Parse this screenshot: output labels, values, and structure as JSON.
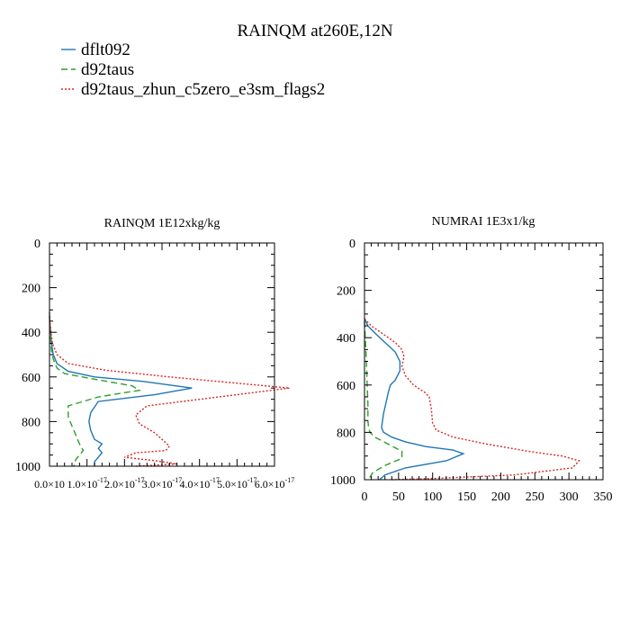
{
  "title": "RAINQM at260E,12N",
  "legend": [
    {
      "name": "dflt092",
      "color": "#1f77b4",
      "dash": "solid"
    },
    {
      "name": "d92taus",
      "color": "#2ca02c",
      "dash": "dashed"
    },
    {
      "name": "d92taus_zhun_c5zero_e3sm_flags2",
      "color": "#d62728",
      "dash": "dotted"
    }
  ],
  "chart_data": [
    {
      "type": "line",
      "title": "RAINQM  1E12xkg/kg",
      "xlabel": "",
      "ylabel": "",
      "xlim": [
        0,
        6e-17
      ],
      "ylim": [
        1000,
        0
      ],
      "y_inverted": true,
      "grid": false,
      "x_tick_values": [
        0,
        1e-17,
        2e-17,
        3e-17,
        4e-17,
        5e-17,
        6e-17
      ],
      "x_tick_labels": [
        "0.0×10",
        "1.0×10",
        "2.0×10",
        "3.0×10",
        "4.0×10",
        "5.0×10",
        "6.0×10"
      ],
      "x_tick_exponents": [
        "",
        "-17",
        "-17",
        "-17",
        "-17",
        "-17",
        "-17"
      ],
      "y_tick_values": [
        0,
        200,
        400,
        600,
        800,
        1000
      ],
      "y_tick_labels": [
        "0",
        "200",
        "400",
        "600",
        "800",
        "1000"
      ],
      "series": [
        {
          "name": "dflt092",
          "x": [
            0,
            1e-19,
            3e-19,
            5e-19,
            1e-18,
            2e-18,
            5e-18,
            1.2e-17,
            2.5e-17,
            3.8e-17,
            2.8e-17,
            1.3e-17,
            1.1e-17,
            1.05e-17,
            1.1e-17,
            1.2e-17,
            1.4e-17,
            1.3e-17,
            1.4e-17,
            1.3e-17,
            1.2e-17,
            1.2e-17
          ],
          "y": [
            320,
            360,
            400,
            450,
            500,
            540,
            575,
            600,
            620,
            650,
            680,
            710,
            760,
            800,
            840,
            880,
            900,
            920,
            940,
            960,
            980,
            1000
          ]
        },
        {
          "name": "d92taus",
          "x": [
            0,
            1e-19,
            3e-19,
            5e-19,
            1e-18,
            2e-18,
            4e-18,
            1.2e-17,
            2.2e-17,
            2.4e-17,
            1.3e-17,
            5e-18,
            5e-18,
            6e-18,
            7e-18,
            8e-18,
            9e-18,
            8e-18,
            7e-18,
            6.5e-18
          ],
          "y": [
            330,
            380,
            430,
            480,
            520,
            560,
            585,
            610,
            640,
            660,
            690,
            730,
            780,
            820,
            860,
            900,
            930,
            950,
            970,
            1000
          ]
        },
        {
          "name": "d92taus_zhun_c5zero_e3sm_flags2",
          "x": [
            0,
            1e-19,
            4e-19,
            8e-19,
            2e-18,
            5e-18,
            1.5e-17,
            3.2e-17,
            4.8e-17,
            6.4e-17,
            4.5e-17,
            2.6e-17,
            2.3e-17,
            2.4e-17,
            2.8e-17,
            3e-17,
            3.2e-17,
            3.1e-17,
            2.3e-17,
            2e-17,
            2.8e-17,
            3.4e-17,
            2.3e-17
          ],
          "y": [
            310,
            350,
            400,
            450,
            500,
            540,
            570,
            600,
            625,
            650,
            690,
            730,
            770,
            810,
            850,
            880,
            910,
            930,
            940,
            960,
            975,
            990,
            1000
          ]
        }
      ]
    },
    {
      "type": "line",
      "title": "NUMRAI  1E3x1/kg",
      "xlabel": "",
      "ylabel": "",
      "xlim": [
        0,
        350
      ],
      "ylim": [
        1000,
        0
      ],
      "y_inverted": true,
      "grid": false,
      "x_tick_values": [
        0,
        50,
        100,
        150,
        200,
        250,
        300,
        350
      ],
      "x_tick_labels": [
        "0",
        "50",
        "100",
        "150",
        "200",
        "250",
        "300",
        "350"
      ],
      "x_tick_exponents": [
        "",
        "",
        "",
        "",
        "",
        "",
        "",
        ""
      ],
      "y_tick_values": [
        0,
        200,
        400,
        600,
        800,
        1000
      ],
      "y_tick_labels": [
        "0",
        "200",
        "400",
        "600",
        "800",
        "1000"
      ],
      "series": [
        {
          "name": "dflt092",
          "x": [
            0,
            5,
            15,
            30,
            45,
            52,
            52,
            45,
            38,
            35,
            32,
            28,
            25,
            28,
            40,
            60,
            90,
            130,
            145,
            120,
            60,
            30,
            22
          ],
          "y": [
            320,
            350,
            380,
            420,
            460,
            500,
            540,
            580,
            600,
            630,
            670,
            720,
            780,
            800,
            820,
            840,
            860,
            875,
            890,
            920,
            950,
            980,
            1000
          ]
        },
        {
          "name": "d92taus",
          "x": [
            0,
            1,
            2,
            3,
            4,
            5,
            5,
            6,
            8,
            15,
            35,
            55,
            55,
            30,
            12,
            6
          ],
          "y": [
            330,
            400,
            450,
            520,
            600,
            680,
            750,
            780,
            800,
            820,
            850,
            880,
            910,
            940,
            970,
            1000
          ]
        },
        {
          "name": "d92taus_zhun_c5zero_e3sm_flags2",
          "x": [
            0,
            10,
            25,
            45,
            55,
            58,
            55,
            60,
            72,
            88,
            95,
            98,
            100,
            105,
            130,
            180,
            240,
            290,
            315,
            305,
            220,
            100,
            40
          ],
          "y": [
            320,
            350,
            380,
            420,
            450,
            480,
            520,
            560,
            600,
            630,
            650,
            700,
            760,
            790,
            820,
            850,
            880,
            900,
            920,
            950,
            980,
            995,
            1000
          ]
        }
      ]
    }
  ]
}
